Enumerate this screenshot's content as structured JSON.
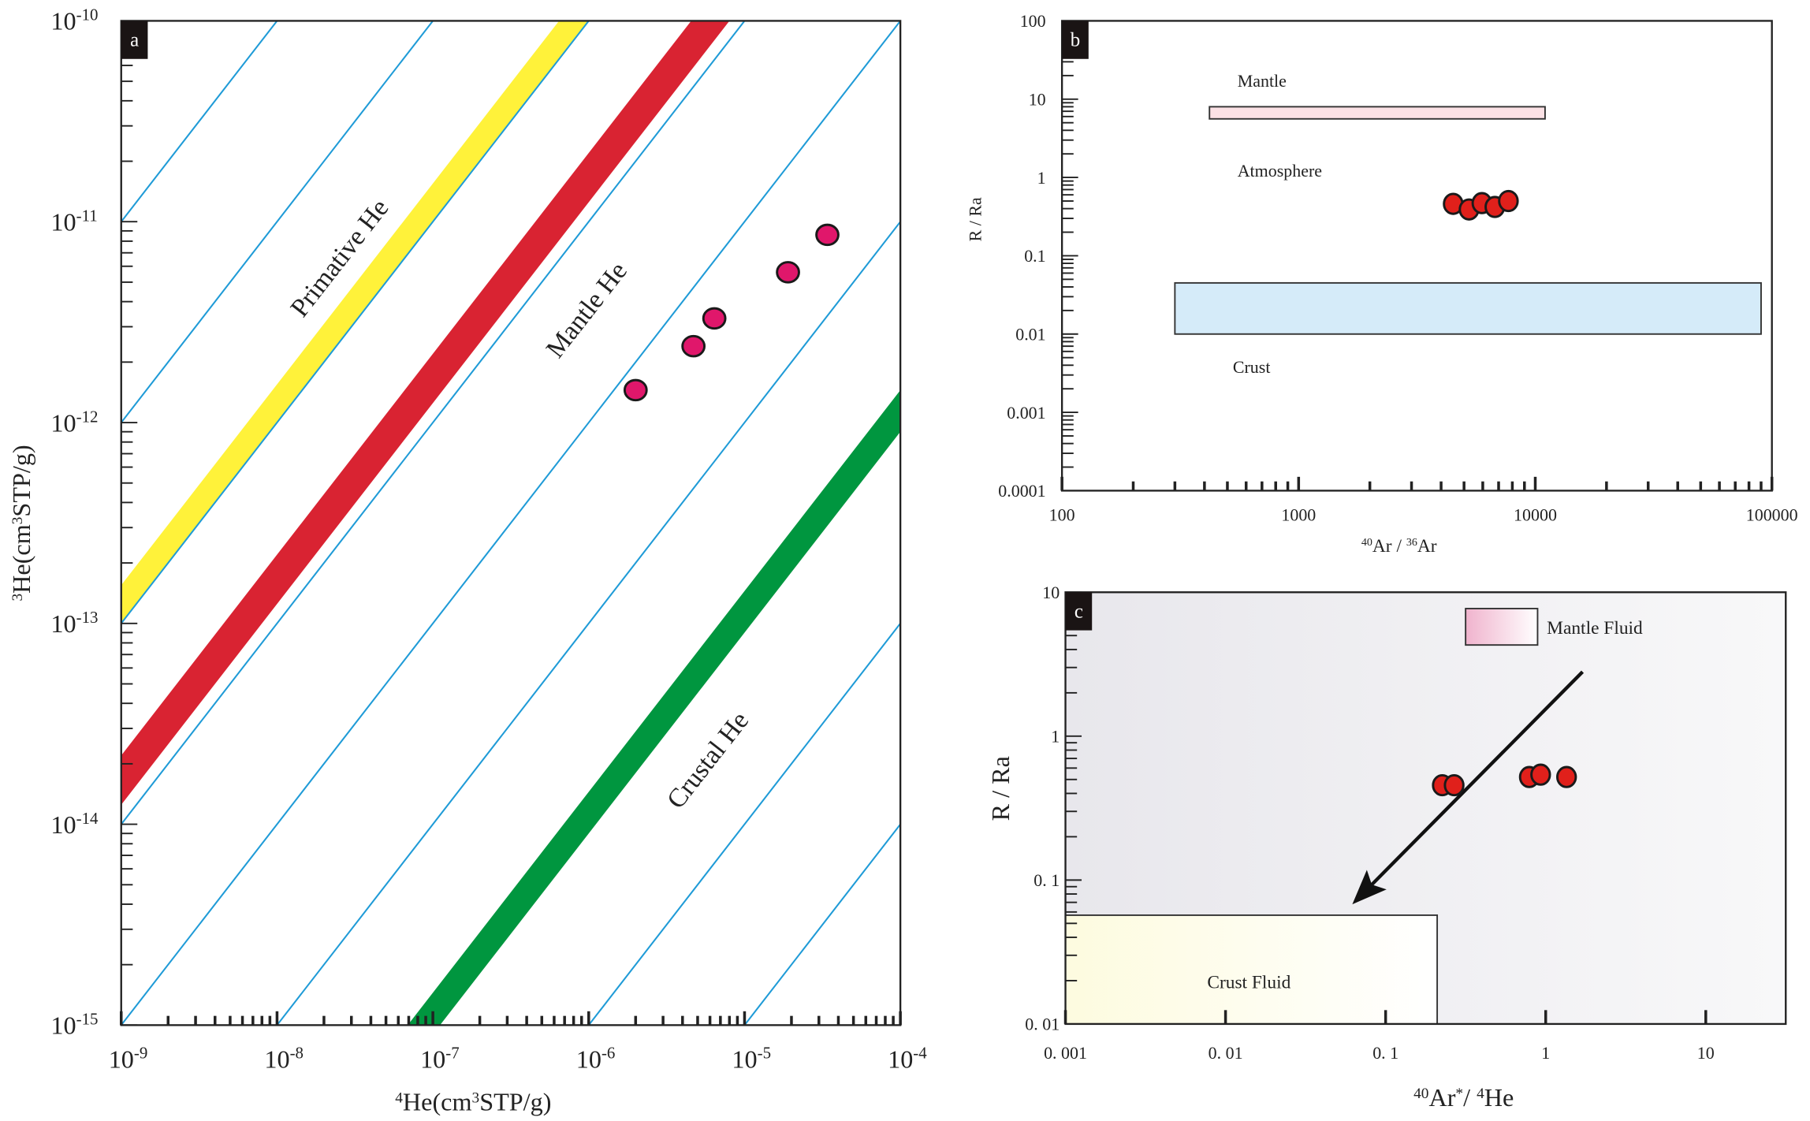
{
  "chart_data": [
    {
      "panel": "a",
      "type": "scatter",
      "x_scale": "log",
      "y_scale": "log",
      "xlim": [
        1e-09,
        0.0001
      ],
      "ylim": [
        1e-15,
        1e-10
      ],
      "grid": false,
      "xlabel": [
        {
          "t": "4",
          "sup": true
        },
        {
          "t": "He(cm"
        },
        {
          "t": "3",
          "sup": true
        },
        {
          "t": "STP/g)"
        }
      ],
      "ylabel": [
        {
          "t": "3",
          "sup": true
        },
        {
          "t": "He(cm"
        },
        {
          "t": "3",
          "sup": true
        },
        {
          "t": "STP/g)"
        }
      ],
      "x_ticks": [
        {
          "value": 1e-09,
          "base": "10",
          "exp": "-9"
        },
        {
          "value": 1e-08,
          "base": "10",
          "exp": "-8"
        },
        {
          "value": 1e-07,
          "base": "10",
          "exp": "-7"
        },
        {
          "value": 1e-06,
          "base": "10",
          "exp": "-6"
        },
        {
          "value": 1e-05,
          "base": "10",
          "exp": "-5"
        },
        {
          "value": 0.0001,
          "base": "10",
          "exp": "-4"
        }
      ],
      "y_ticks": [
        {
          "value": 1e-10,
          "base": "10",
          "exp": "-10"
        },
        {
          "value": 1e-11,
          "base": "10",
          "exp": "-11"
        },
        {
          "value": 1e-12,
          "base": "10",
          "exp": "-12"
        },
        {
          "value": 1e-13,
          "base": "10",
          "exp": "-13"
        },
        {
          "value": 1e-14,
          "base": "10",
          "exp": "-14"
        },
        {
          "value": 1e-15,
          "base": "10",
          "exp": "-15"
        }
      ],
      "ratio_lines_3He_4He": [
        0.01,
        0.001,
        0.0001,
        1e-05,
        1e-06,
        1e-07,
        1e-09,
        1e-10
      ],
      "ratio_line_color": "#1f9bd7",
      "bands_3He_4He": [
        {
          "range": [
            0.0001,
            0.000155
          ],
          "color": "#fff23a"
        },
        {
          "range": [
            1.25e-05,
            2.2e-05
          ],
          "color": "#d92332"
        },
        {
          "range": [
            9e-09,
            1.45e-08
          ],
          "color": "#00963f"
        }
      ],
      "annotations": [
        "Primative He",
        "Mantle He",
        "Crustal He"
      ],
      "points": {
        "color": "#e0176b",
        "x": [
          2e-06,
          4.7e-06,
          6.4e-06,
          1.9e-05,
          3.4e-05
        ],
        "y": [
          1.45e-12,
          2.4e-12,
          3.3e-12,
          5.6e-12,
          8.6e-12
        ]
      }
    },
    {
      "panel": "b",
      "type": "scatter",
      "x_scale": "log",
      "y_scale": "log",
      "xlim": [
        100,
        100000
      ],
      "ylim": [
        0.0001,
        100
      ],
      "grid": false,
      "xlabel": [
        {
          "t": "40",
          "sup": true
        },
        {
          "t": "Ar / "
        },
        {
          "t": "36",
          "sup": true
        },
        {
          "t": "Ar"
        }
      ],
      "ylabel": [
        {
          "t": "R / Ra"
        }
      ],
      "x_ticks": [
        {
          "value": 100,
          "label": "100"
        },
        {
          "value": 1000,
          "label": "1000"
        },
        {
          "value": 10000,
          "label": "10000"
        },
        {
          "value": 100000,
          "label": "100000"
        }
      ],
      "y_ticks": [
        {
          "value": 100,
          "label": "100"
        },
        {
          "value": 10,
          "label": "10"
        },
        {
          "value": 1,
          "label": "1"
        },
        {
          "value": 0.1,
          "label": "0.1"
        },
        {
          "value": 0.01,
          "label": "0.01"
        },
        {
          "value": 0.001,
          "label": "0.001"
        },
        {
          "value": 0.0001,
          "label": "0.0001"
        }
      ],
      "fields": [
        {
          "label": "Mantle",
          "x": [
            420,
            11000
          ],
          "y": [
            5.6,
            8.0
          ],
          "color": "#fbe1e5"
        },
        {
          "label": "Crust",
          "x": [
            300,
            90000
          ],
          "y": [
            0.01,
            0.045
          ],
          "color": "#d5ebf9"
        }
      ],
      "annotations": [
        "Atmosphere"
      ],
      "points": {
        "color": "#e0201b",
        "x": [
          4500,
          5250,
          5950,
          6750,
          7700
        ],
        "y": [
          0.46,
          0.39,
          0.47,
          0.42,
          0.5
        ]
      }
    },
    {
      "panel": "c",
      "type": "scatter",
      "x_scale": "log",
      "y_scale": "log",
      "xlim": [
        0.001,
        31.6
      ],
      "ylim": [
        0.01,
        10
      ],
      "grid": false,
      "xlabel": [
        {
          "t": "40",
          "sup": true
        },
        {
          "t": "Ar"
        },
        {
          "t": "*",
          "sup": true
        },
        {
          "t": "/ "
        },
        {
          "t": "4",
          "sup": true
        },
        {
          "t": "He"
        }
      ],
      "ylabel": [
        {
          "t": "R / Ra"
        }
      ],
      "x_ticks": [
        {
          "value": 0.001,
          "label": "0. 001"
        },
        {
          "value": 0.01,
          "label": "0. 01"
        },
        {
          "value": 0.1,
          "label": "0. 1"
        },
        {
          "value": 1,
          "label": "1"
        },
        {
          "value": 10,
          "label": "10"
        }
      ],
      "y_ticks": [
        {
          "value": 10,
          "label": "10"
        },
        {
          "value": 1,
          "label": "1"
        },
        {
          "value": 0.1,
          "label": "0. 1"
        },
        {
          "value": 0.01,
          "label": "0. 01"
        }
      ],
      "fields": [
        {
          "label": "Mantle Fluid",
          "x": [
            0.316,
            0.89
          ],
          "y": [
            4.3,
            7.7
          ],
          "color": "#f0b3cd"
        },
        {
          "label": "Crust Fluid",
          "x": [
            0.001,
            0.21
          ],
          "y": [
            0.01,
            0.057
          ],
          "color": "#fdfbdf"
        }
      ],
      "arrow": {
        "from": [
          1.7,
          2.8
        ],
        "to": [
          0.082,
          0.093
        ],
        "color": "#111111"
      },
      "background_colors": [
        "#e8e7ec",
        "#f8f8f9"
      ],
      "points": {
        "color": "#e0201b",
        "x": [
          0.226,
          0.268,
          0.79,
          0.93,
          1.35
        ],
        "y": [
          0.456,
          0.456,
          0.52,
          0.54,
          0.52
        ]
      }
    }
  ]
}
